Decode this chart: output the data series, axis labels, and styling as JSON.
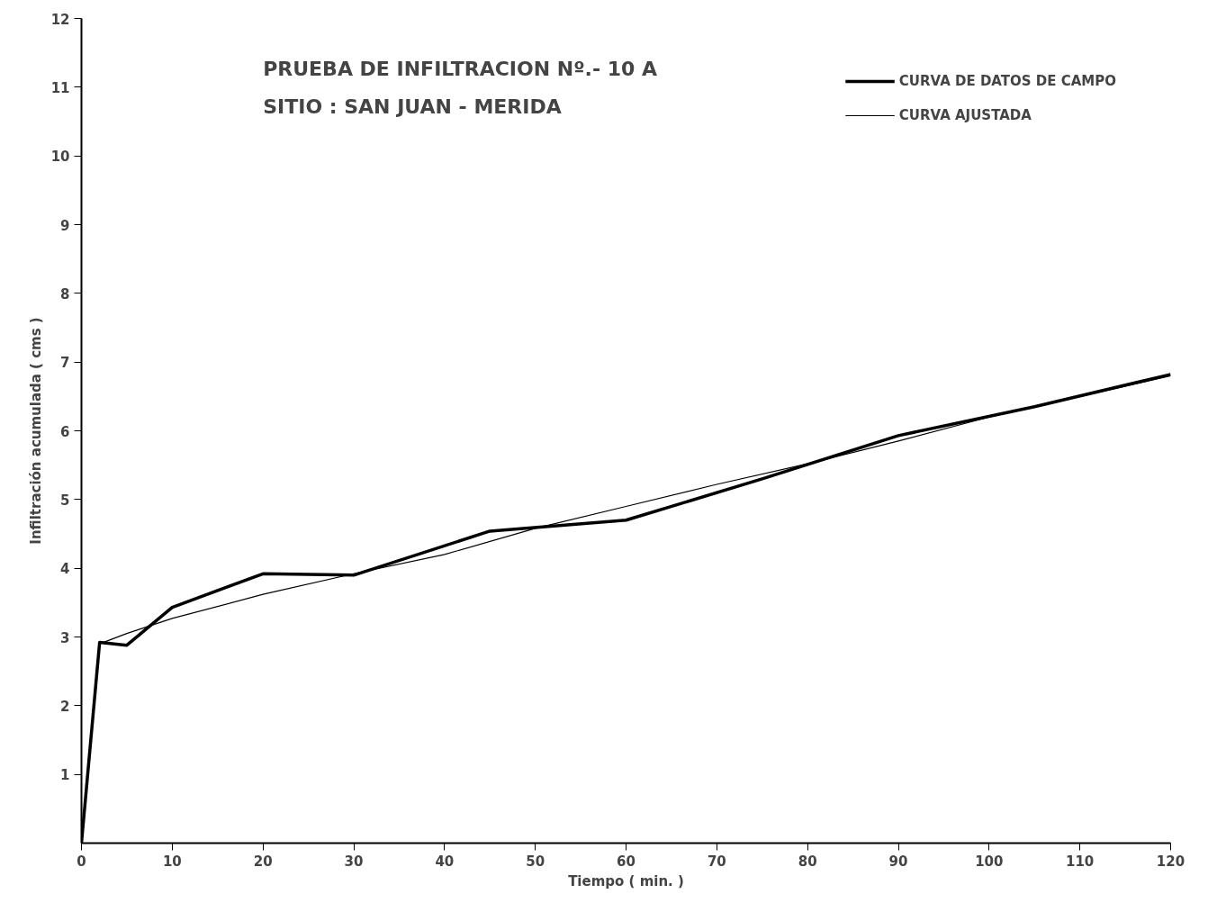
{
  "chart_data": {
    "type": "line",
    "title": "PRUEBA DE INFILTRACION Nº.- 10 A",
    "subtitle": "SITIO : SAN JUAN - MERIDA",
    "xlabel": "Tiempo ( min. )",
    "ylabel": "Infiltración acumulada ( cms )",
    "xlim": [
      0,
      120
    ],
    "ylim": [
      0,
      12
    ],
    "xticks": [
      0,
      10,
      20,
      30,
      40,
      50,
      60,
      70,
      80,
      90,
      100,
      110,
      120
    ],
    "yticks": [
      1,
      2,
      3,
      4,
      5,
      6,
      7,
      8,
      9,
      10,
      11,
      12
    ],
    "grid": false,
    "legend": "top right",
    "marker": "none",
    "line_style": "solid",
    "series": [
      {
        "name": "CURVA DE DATOS DE CAMPO",
        "color": "#000000",
        "x": [
          0,
          2,
          5,
          10,
          20,
          30,
          45,
          60,
          75,
          90,
          105,
          120
        ],
        "values": [
          0,
          2.92,
          2.88,
          3.43,
          3.92,
          3.9,
          4.54,
          4.7,
          5.3,
          5.93,
          6.35,
          6.82
        ]
      },
      {
        "name": "CURVA AJUSTADA",
        "color": "#000000",
        "x": [
          0,
          2,
          5,
          10,
          20,
          30,
          40,
          50,
          60,
          70,
          80,
          90,
          100,
          110,
          120
        ],
        "values": [
          0,
          2.9,
          3.05,
          3.27,
          3.62,
          3.92,
          4.2,
          4.58,
          4.9,
          5.22,
          5.52,
          5.85,
          6.2,
          6.5,
          6.8
        ]
      }
    ]
  }
}
